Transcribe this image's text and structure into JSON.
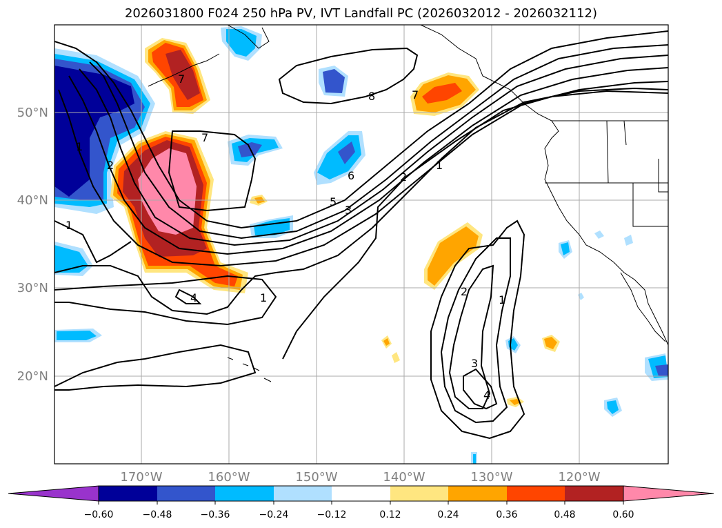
{
  "title": "2026031800 F024 250 hPa PV, IVT Landfall PC (2026032012 - 2026032112)",
  "map": {
    "lat_labels": [
      "50°N",
      "40°N",
      "30°N",
      "20°N"
    ],
    "lon_labels": [
      "170°W",
      "160°W",
      "150°W",
      "140°W",
      "130°W",
      "120°W"
    ]
  },
  "colorbar": {
    "ticks": [
      "−0.60",
      "−0.48",
      "−0.36",
      "−0.24",
      "−0.12",
      "0.12",
      "0.24",
      "0.36",
      "0.48",
      "0.60"
    ],
    "colors": [
      "#9933cc",
      "#000099",
      "#3355cc",
      "#00bbff",
      "#b0e0ff",
      "#ffffff",
      "#ffe680",
      "#ffa500",
      "#ff4500",
      "#b22222",
      "#ff88aa",
      "#ff88aa"
    ],
    "extend": "both"
  },
  "contour_labels": {
    "c8": "8",
    "c7a": "7",
    "c7b": "7",
    "c7c": "7",
    "c6": "6",
    "c5": "5",
    "c3": "3",
    "c2a": "2",
    "c2b": "2",
    "c1a": "1",
    "c1b": "1",
    "c1c": "1",
    "c4": "4",
    "c2s": "2",
    "c1s": "1",
    "c3s": "3",
    "c4s": "4"
  }
}
